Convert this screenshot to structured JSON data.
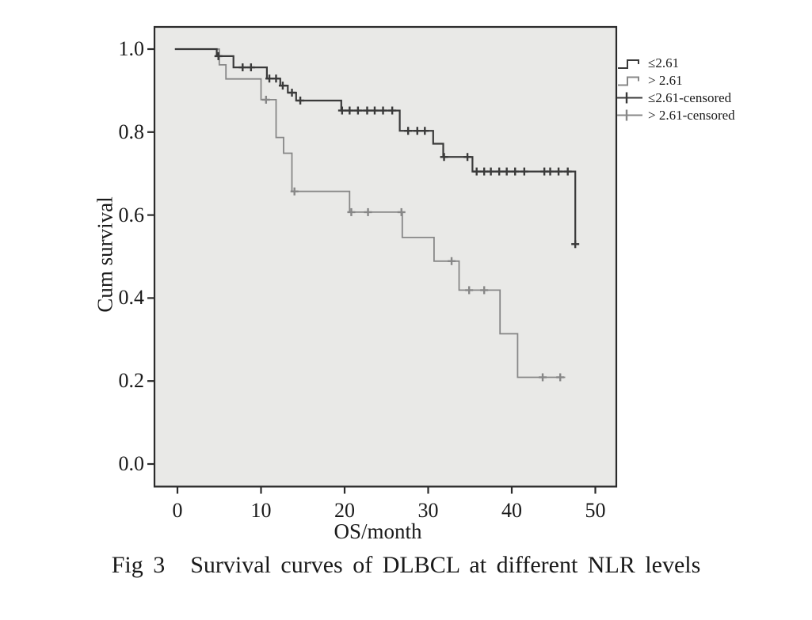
{
  "figure": {
    "background": "#ffffff",
    "plot_background": "#e9e9e7",
    "border_color": "#2b2b2b"
  },
  "caption": {
    "prefix": "Fig 3",
    "text": "Survival curves of DLBCL at different NLR levels"
  },
  "chart_data": {
    "type": "line",
    "subtype": "kaplan_meier_step",
    "title": "Fig 3 Survival curves of DLBCL at different NLR levels",
    "xlabel": "OS/month",
    "ylabel": "Cum survival",
    "xlim": [
      0,
      50
    ],
    "ylim": [
      0.0,
      1.0
    ],
    "x_ticks": [
      "0",
      "10",
      "20",
      "30",
      "40",
      "50"
    ],
    "x_tick_values": [
      0,
      10,
      20,
      30,
      40,
      50
    ],
    "y_ticks": [
      "0.0",
      "0.2",
      "0.4",
      "0.6",
      "0.8",
      "1.0"
    ],
    "y_tick_values": [
      0.0,
      0.2,
      0.4,
      0.6,
      0.8,
      1.0
    ],
    "grid": false,
    "legend_position": "right-top-outside",
    "series": [
      {
        "name": "≤2.61",
        "color": "#3a3a3a",
        "line_width": 2.2,
        "start": [
          -0.3,
          1.0
        ],
        "events": [
          [
            4.7,
            0.983
          ],
          [
            6.7,
            0.956
          ],
          [
            10.7,
            0.929
          ],
          [
            12.3,
            0.912
          ],
          [
            13.2,
            0.895
          ],
          [
            14.2,
            0.876
          ],
          [
            19.6,
            0.852
          ],
          [
            26.6,
            0.803
          ],
          [
            30.6,
            0.772
          ],
          [
            31.8,
            0.74
          ],
          [
            35.3,
            0.705
          ],
          [
            47.6,
            0.53
          ]
        ],
        "end_time": 47.6,
        "censors": [
          [
            4.9,
            0.983
          ],
          [
            7.8,
            0.956
          ],
          [
            8.8,
            0.956
          ],
          [
            11.0,
            0.929
          ],
          [
            11.8,
            0.929
          ],
          [
            12.6,
            0.912
          ],
          [
            13.7,
            0.895
          ],
          [
            14.7,
            0.876
          ],
          [
            19.7,
            0.852
          ],
          [
            20.6,
            0.852
          ],
          [
            21.6,
            0.852
          ],
          [
            22.7,
            0.852
          ],
          [
            23.6,
            0.852
          ],
          [
            24.6,
            0.852
          ],
          [
            25.7,
            0.852
          ],
          [
            27.6,
            0.803
          ],
          [
            28.7,
            0.803
          ],
          [
            29.6,
            0.803
          ],
          [
            31.9,
            0.74
          ],
          [
            34.7,
            0.74
          ],
          [
            35.8,
            0.705
          ],
          [
            36.7,
            0.705
          ],
          [
            37.5,
            0.705
          ],
          [
            38.5,
            0.705
          ],
          [
            39.4,
            0.705
          ],
          [
            40.4,
            0.705
          ],
          [
            41.5,
            0.705
          ],
          [
            43.9,
            0.705
          ],
          [
            44.6,
            0.705
          ],
          [
            45.6,
            0.705
          ],
          [
            46.7,
            0.705
          ],
          [
            47.6,
            0.53
          ]
        ]
      },
      {
        "name": "> 2.61",
        "color": "#878787",
        "line_width": 1.8,
        "start": [
          -0.3,
          1.0
        ],
        "events": [
          [
            5.0,
            0.962
          ],
          [
            5.8,
            0.928
          ],
          [
            10.0,
            0.878
          ],
          [
            11.8,
            0.787
          ],
          [
            12.7,
            0.749
          ],
          [
            13.7,
            0.657
          ],
          [
            20.6,
            0.607
          ],
          [
            26.9,
            0.546
          ],
          [
            30.7,
            0.489
          ],
          [
            33.7,
            0.419
          ],
          [
            38.6,
            0.314
          ],
          [
            40.7,
            0.209
          ]
        ],
        "end_time": 46.4,
        "censors": [
          [
            10.6,
            0.878
          ],
          [
            14.0,
            0.657
          ],
          [
            20.8,
            0.607
          ],
          [
            22.8,
            0.607
          ],
          [
            26.8,
            0.607
          ],
          [
            32.8,
            0.489
          ],
          [
            34.9,
            0.419
          ],
          [
            36.7,
            0.419
          ],
          [
            43.7,
            0.209
          ],
          [
            45.8,
            0.209
          ]
        ]
      }
    ],
    "legend": [
      {
        "label": "≤2.61",
        "symbol": "step-line",
        "color": "#3a3a3a"
      },
      {
        "label": "> 2.61",
        "symbol": "step-line",
        "color": "#878787"
      },
      {
        "label": "≤2.61-censored",
        "symbol": "plus",
        "color": "#3a3a3a"
      },
      {
        "label": "> 2.61-censored",
        "symbol": "plus",
        "color": "#878787"
      }
    ]
  }
}
